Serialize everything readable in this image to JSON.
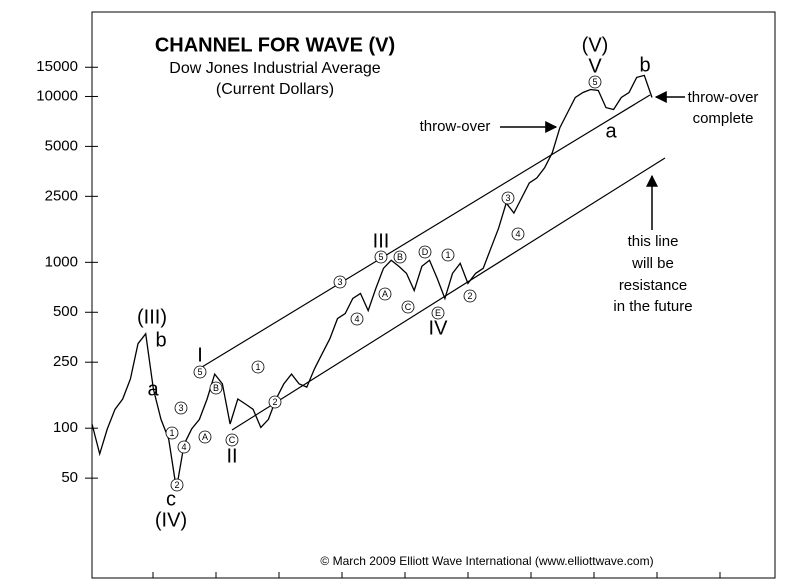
{
  "chart_data": {
    "type": "line",
    "title": "CHANNEL FOR WAVE (V)",
    "subtitle": [
      "Dow Jones Industrial Average",
      "(Current Dollars)"
    ],
    "categories": [
      null,
      null,
      null,
      null,
      null,
      null,
      null,
      null,
      null,
      null,
      null,
      null,
      null,
      null,
      null,
      null,
      null,
      null,
      null,
      null,
      null,
      null,
      null,
      null,
      null,
      null,
      null,
      null,
      null,
      null,
      null,
      null,
      null,
      null,
      null,
      null,
      null,
      null,
      null,
      null,
      null,
      null,
      null,
      null,
      null,
      null,
      null,
      null,
      null,
      null,
      null,
      null,
      null,
      null,
      null,
      null,
      null,
      null,
      null,
      null,
      null,
      null,
      null,
      null,
      null,
      null,
      null,
      null,
      null,
      null,
      null,
      null,
      null,
      null
    ],
    "series": [
      {
        "name": "Dow Jones Industrial Average",
        "color": "#000000",
        "values": [
          106,
          70,
          99,
          130,
          150,
          198,
          323,
          371,
          172,
          113,
          86,
          43,
          80,
          99,
          113,
          150,
          212,
          185,
          106,
          150,
          140,
          130,
          101,
          113,
          150,
          185,
          212,
          185,
          177,
          228,
          281,
          346,
          458,
          491,
          605,
          649,
          512,
          695,
          920,
          1028,
          946,
          857,
          676,
          946,
          1028,
          800,
          605,
          857,
          986,
          746,
          857,
          920,
          1217,
          1607,
          2280,
          1983,
          2444,
          3013,
          3228,
          3715,
          4581,
          6486,
          8000,
          9860,
          10570,
          11020,
          10870,
          8570,
          8340,
          9860,
          10570,
          13030,
          13390,
          9860
        ]
      }
    ],
    "log_scale": true,
    "ylim": [
      12.5,
      32300
    ],
    "yticks": [
      50,
      100,
      250,
      500,
      1000,
      2500,
      5000,
      10000,
      15000
    ],
    "wave_labels": [
      "(III)",
      "b",
      "a",
      "c",
      "(IV)",
      "I",
      "II",
      "III",
      "IV",
      "V",
      "(V)",
      "a",
      "b"
    ],
    "circled_labels": [
      "5",
      "B",
      "3",
      "A",
      "1",
      "4",
      "2",
      "C",
      "1",
      "2",
      "3",
      "4",
      "5",
      "B",
      "D",
      "1",
      "A",
      "C",
      "E",
      "2",
      "3",
      "4",
      "5"
    ],
    "notes": {
      "throw_over": "throw-over",
      "throw_over_complete": [
        "throw-over",
        "complete"
      ],
      "resistance": [
        "this line",
        "will be",
        "resistance",
        "in the future"
      ]
    },
    "credit": "© March 2009 Elliott Wave International (www.elliottwave.com)"
  }
}
